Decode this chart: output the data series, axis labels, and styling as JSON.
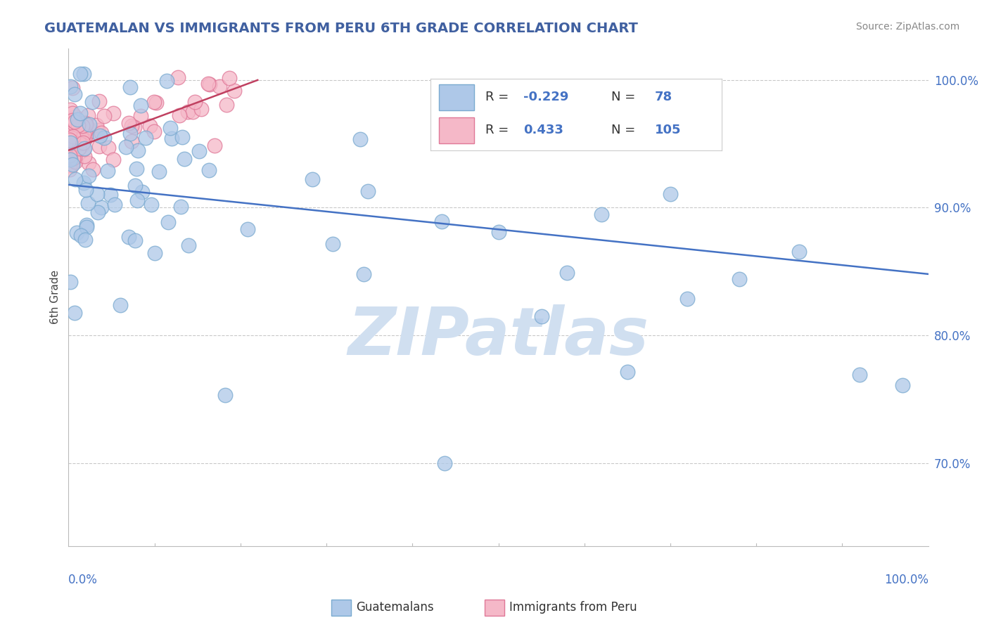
{
  "title": "GUATEMALAN VS IMMIGRANTS FROM PERU 6TH GRADE CORRELATION CHART",
  "source": "Source: ZipAtlas.com",
  "ylabel": "6th Grade",
  "blue_R": -0.229,
  "blue_N": 78,
  "pink_R": 0.433,
  "pink_N": 105,
  "blue_color": "#aec8e8",
  "blue_edge": "#7aaad0",
  "pink_color": "#f5b8c8",
  "pink_edge": "#e07898",
  "blue_line_color": "#4472c4",
  "pink_line_color": "#c04060",
  "watermark_color": "#d0dff0",
  "background_color": "#ffffff",
  "grid_color": "#bbbbbb",
  "title_color": "#4060a0",
  "source_color": "#888888",
  "ytick_color": "#4472c4",
  "xlabel_color": "#4472c4",
  "xmin": 0.0,
  "xmax": 1.0,
  "ymin": 0.635,
  "ymax": 1.025,
  "ytick_values": [
    1.0,
    0.9,
    0.8,
    0.7
  ],
  "ytick_labels": [
    "100.0%",
    "90.0%",
    "80.0%",
    "70.0%"
  ],
  "blue_line_x0": 0.0,
  "blue_line_x1": 1.0,
  "blue_line_y0": 0.918,
  "blue_line_y1": 0.848,
  "pink_line_x0": 0.0,
  "pink_line_x1": 0.22,
  "pink_line_y0": 0.945,
  "pink_line_y1": 1.0
}
